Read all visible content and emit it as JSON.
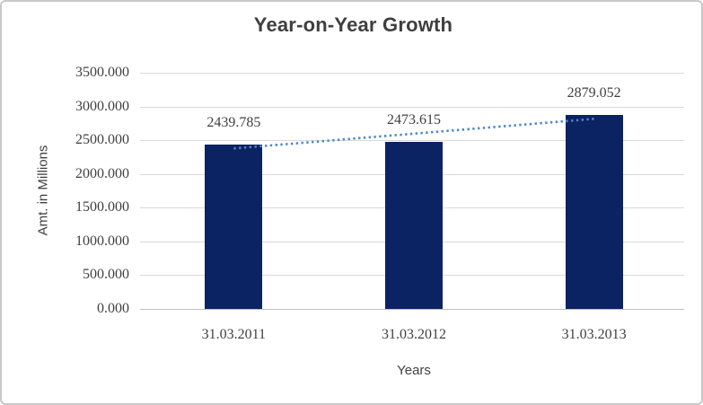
{
  "chart_data": {
    "type": "bar",
    "title": "Year-on-Year Growth",
    "xlabel": "Years",
    "ylabel": "Amt. in Millions",
    "categories": [
      "31.03.2011",
      "31.03.2012",
      "31.03.2013"
    ],
    "values": [
      2439.785,
      2473.615,
      2879.052
    ],
    "data_labels": [
      "2439.785",
      "2473.615",
      "2879.052"
    ],
    "y_tick_labels": [
      "3500.000",
      "3000.000",
      "2500.000",
      "2000.000",
      "1500.000",
      "1000.000",
      "500.000",
      "0.000"
    ],
    "ylim": [
      0,
      3500
    ],
    "grid": true,
    "legend": "none",
    "trendline": "linear-dotted",
    "colors": {
      "bar": "#0b2263",
      "trendline": "#4e87c8",
      "gridline": "#d9d9d9",
      "baseline": "#bfbfbf",
      "text": "#404040",
      "title_text": "#3f3f3f",
      "panel_border": "#c9c9c9",
      "background": "#ffffff"
    }
  }
}
